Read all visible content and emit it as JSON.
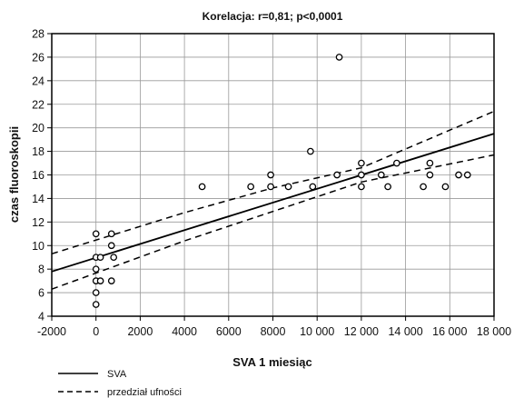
{
  "chart_data": {
    "type": "scatter",
    "title": "Korelacja: r=0,81; p<0,0001",
    "xlabel": "SVA 1 miesiąc",
    "ylabel": "czas fluoroskopii",
    "xlim": [
      -2000,
      18000
    ],
    "ylim": [
      4,
      28
    ],
    "x_ticks": [
      -2000,
      0,
      2000,
      4000,
      6000,
      8000,
      10000,
      12000,
      14000,
      16000,
      18000
    ],
    "x_tick_labels": [
      "-2000",
      "0",
      "2000",
      "4000",
      "6000",
      "8000",
      "10 000",
      "12 000",
      "14 000",
      "16 000",
      "18 000"
    ],
    "y_ticks": [
      4,
      6,
      8,
      10,
      12,
      14,
      16,
      18,
      20,
      22,
      24,
      26,
      28
    ],
    "y_tick_labels": [
      "4",
      "6",
      "8",
      "10",
      "12",
      "14",
      "16",
      "18",
      "20",
      "22",
      "24",
      "26",
      "28"
    ],
    "grid": true,
    "legend_position": "bottom-left",
    "points": [
      {
        "x": 0,
        "y": 11
      },
      {
        "x": 0,
        "y": 9
      },
      {
        "x": 0,
        "y": 8
      },
      {
        "x": 0,
        "y": 7
      },
      {
        "x": 0,
        "y": 6
      },
      {
        "x": 0,
        "y": 5
      },
      {
        "x": 200,
        "y": 9
      },
      {
        "x": 200,
        "y": 7
      },
      {
        "x": 700,
        "y": 11
      },
      {
        "x": 700,
        "y": 10
      },
      {
        "x": 800,
        "y": 9
      },
      {
        "x": 700,
        "y": 7
      },
      {
        "x": 4800,
        "y": 15
      },
      {
        "x": 7000,
        "y": 15
      },
      {
        "x": 7900,
        "y": 16
      },
      {
        "x": 7900,
        "y": 15
      },
      {
        "x": 8700,
        "y": 15
      },
      {
        "x": 9700,
        "y": 18
      },
      {
        "x": 9800,
        "y": 15
      },
      {
        "x": 10900,
        "y": 16
      },
      {
        "x": 11000,
        "y": 26
      },
      {
        "x": 12000,
        "y": 17
      },
      {
        "x": 12000,
        "y": 16
      },
      {
        "x": 12000,
        "y": 15
      },
      {
        "x": 12900,
        "y": 16
      },
      {
        "x": 13200,
        "y": 15
      },
      {
        "x": 13600,
        "y": 17
      },
      {
        "x": 14800,
        "y": 15
      },
      {
        "x": 15100,
        "y": 17
      },
      {
        "x": 15100,
        "y": 16
      },
      {
        "x": 15800,
        "y": 15
      },
      {
        "x": 16400,
        "y": 16
      },
      {
        "x": 16800,
        "y": 16
      }
    ],
    "regression": {
      "x": [
        -2000,
        18000
      ],
      "y": [
        7.8,
        19.5
      ]
    },
    "confidence_upper": {
      "x": [
        -2000,
        4000,
        8000,
        12000,
        18000
      ],
      "y": [
        9.3,
        12.8,
        14.9,
        16.6,
        21.4
      ]
    },
    "confidence_lower": {
      "x": [
        -2000,
        4000,
        8000,
        12000,
        18000
      ],
      "y": [
        6.3,
        10.4,
        12.9,
        15.4,
        17.7
      ]
    },
    "legend": [
      {
        "label": "SVA",
        "style": "solid"
      },
      {
        "label": "przedział ufności",
        "style": "dashed"
      }
    ],
    "colors": {
      "line": "#000000",
      "points": "#000000",
      "grid": "#9a9a9a",
      "background": "#ffffff"
    }
  }
}
